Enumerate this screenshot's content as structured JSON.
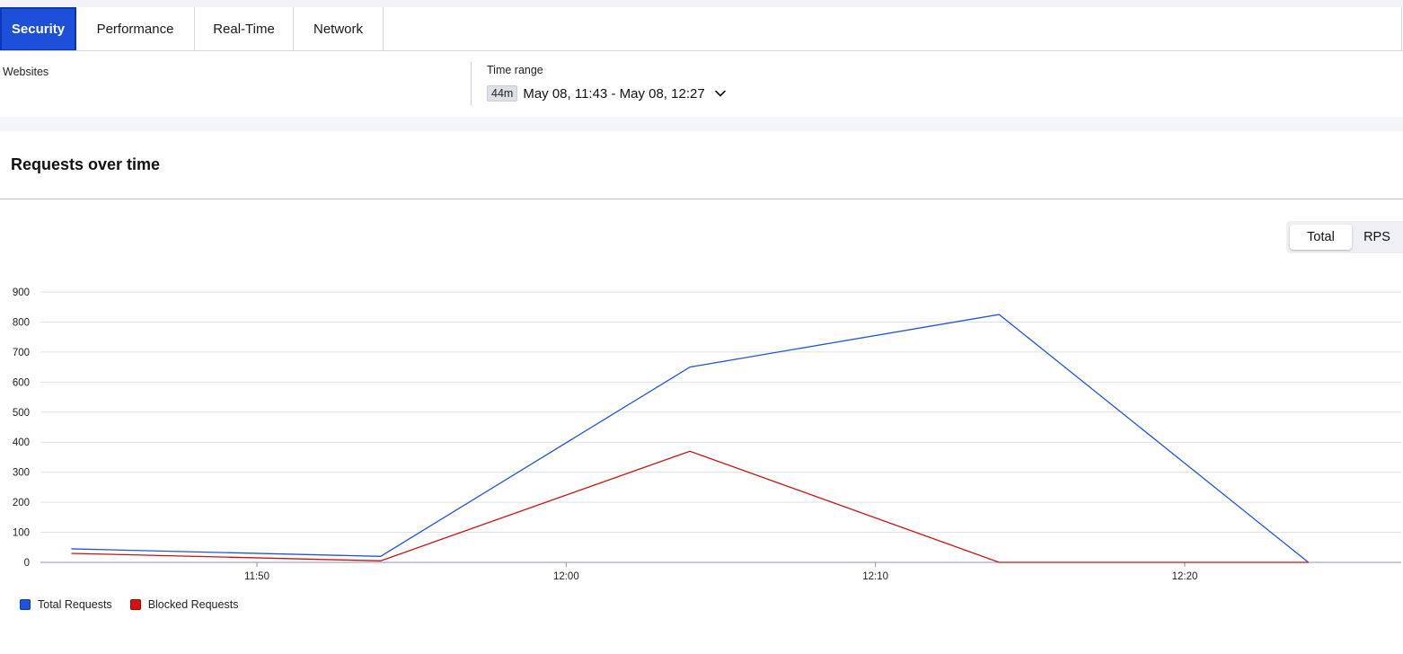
{
  "tabs": [
    {
      "label": "Security",
      "active": true
    },
    {
      "label": "Performance",
      "active": false
    },
    {
      "label": "Real-Time",
      "active": false
    },
    {
      "label": "Network",
      "active": false
    }
  ],
  "filters": {
    "websites_label": "Websites",
    "time_range_label": "Time range",
    "range_badge": "44m",
    "range_text": "May 08, 11:43 - May 08, 12:27",
    "dropdown_icon": "chevron-down-icon"
  },
  "section": {
    "title": "Requests over time"
  },
  "view_toggle": {
    "options": [
      "Total",
      "RPS"
    ],
    "selected": "Total"
  },
  "chart_data": {
    "type": "line",
    "x_unit": "time",
    "x_ticks": [
      "11:50",
      "12:00",
      "12:10",
      "12:20"
    ],
    "y_ticks": [
      0,
      100,
      200,
      300,
      400,
      500,
      600,
      700,
      800,
      900
    ],
    "ylim": [
      0,
      900
    ],
    "xlim": [
      "11:43",
      "12:27"
    ],
    "x": [
      "11:44",
      "11:54",
      "12:04",
      "12:14",
      "12:24"
    ],
    "series": [
      {
        "name": "Total Requests",
        "color": "#1f55d6",
        "values": [
          45,
          20,
          650,
          825,
          0
        ]
      },
      {
        "name": "Blocked Requests",
        "color": "#cc1111",
        "values": [
          30,
          5,
          370,
          0,
          0
        ]
      }
    ],
    "grid": true,
    "legend_position": "bottom-left"
  },
  "colors": {
    "accent": "#1d4fd8",
    "total": "#1f55d6",
    "blocked": "#cc1111"
  }
}
